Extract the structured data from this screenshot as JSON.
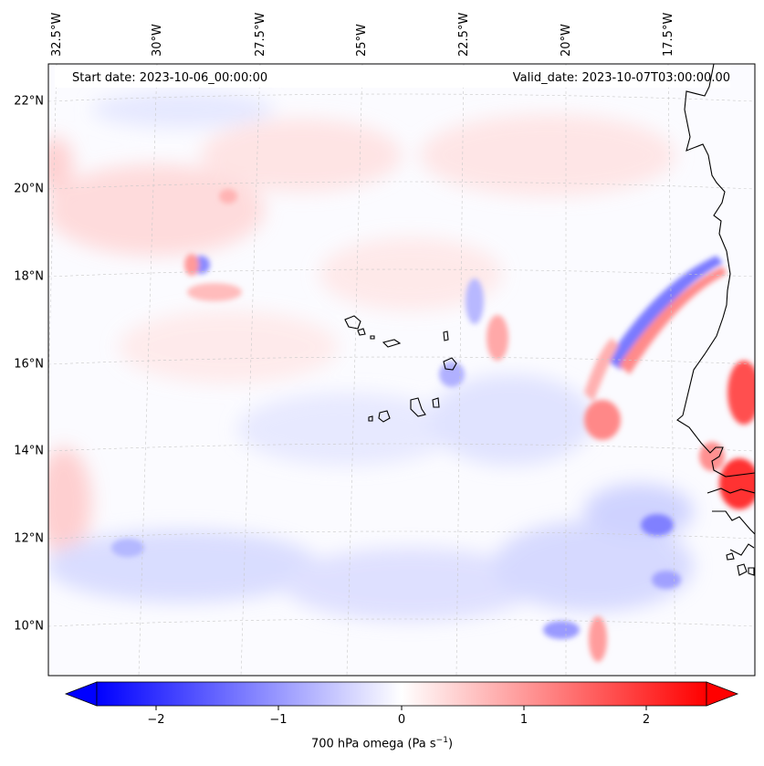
{
  "header": {
    "start_date": "Start date: 2023-10-06_00:00:00",
    "valid_date": "Valid_date: 2023-10-07T03:00:00.00"
  },
  "map": {
    "variable": "700 hPa omega",
    "lon_labels": [
      "32.5°W",
      "30°W",
      "27.5°W",
      "25°W",
      "22.5°W",
      "20°W",
      "17.5°W"
    ],
    "lat_labels": [
      "22°N",
      "20°N",
      "18°N",
      "16°N",
      "14°N",
      "12°N",
      "10°N"
    ],
    "features": [
      "Cape Verde islands",
      "West African coastline",
      "Senegal/Gambia coast",
      "Bissagos islands"
    ]
  },
  "colorbar": {
    "label_prefix": "700 hPa omega (Pa s",
    "label_exp": "−1",
    "label_suffix": ")",
    "ticks": [
      "−2",
      "−1",
      "0",
      "1",
      "2"
    ],
    "min": -2.6,
    "max": 2.6,
    "colors": {
      "neg": "#0000ff",
      "mid": "#ffffff",
      "pos": "#ff0000"
    }
  }
}
